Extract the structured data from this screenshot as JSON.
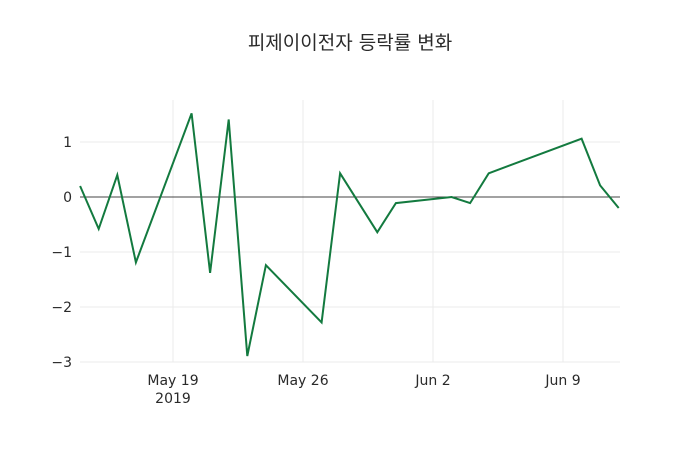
{
  "chart_data": {
    "type": "line",
    "title": "피제이이전자 등락률 변화",
    "xlabel": "",
    "ylabel": "",
    "x": [
      "2019-05-14",
      "2019-05-15",
      "2019-05-16",
      "2019-05-17",
      "2019-05-20",
      "2019-05-21",
      "2019-05-22",
      "2019-05-23",
      "2019-05-24",
      "2019-05-27",
      "2019-05-28",
      "2019-05-30",
      "2019-05-31",
      "2019-06-03",
      "2019-06-04",
      "2019-06-05",
      "2019-06-10",
      "2019-06-11",
      "2019-06-12"
    ],
    "series": [
      {
        "name": "등락률",
        "color": "#137a3f",
        "values": [
          0.2,
          -0.58,
          0.4,
          -1.19,
          1.52,
          -1.38,
          1.41,
          -2.89,
          -1.24,
          -2.28,
          0.43,
          -0.64,
          -0.11,
          0.0,
          -0.11,
          0.43,
          1.06,
          0.21,
          -0.2
        ]
      }
    ],
    "ylim": [
      -3,
      1.7
    ],
    "y_ticks": [
      1,
      0,
      -1,
      -2,
      -3
    ],
    "y_tick_labels": [
      "1",
      "0",
      "−1",
      "−2",
      "−3"
    ],
    "x_ticks": [
      "May 19",
      "May 26",
      "Jun 2",
      "Jun 9"
    ],
    "x_tick_sublabel": "2019",
    "grid": true,
    "legend": false
  }
}
